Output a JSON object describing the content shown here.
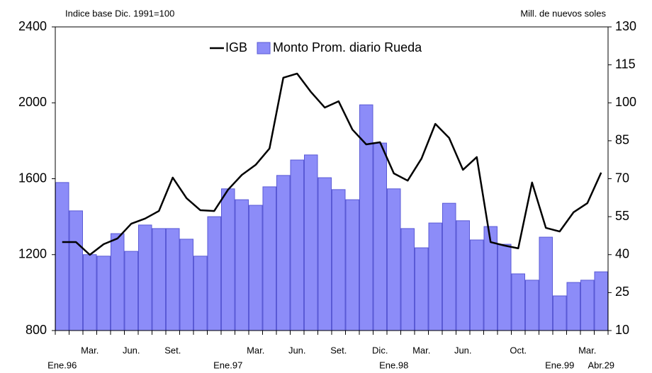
{
  "chart_data": {
    "type": "bar",
    "ylabel": "Indice base Dic. 1991=100",
    "y2label": "Mill. de nuevos soles",
    "categories": [
      "Ene.96",
      null,
      "Mar.",
      null,
      null,
      "Jun.",
      null,
      null,
      "Set.",
      null,
      null,
      null,
      "Ene.97",
      null,
      "Mar.",
      null,
      null,
      "Jun.",
      null,
      null,
      "Set.",
      null,
      null,
      "Dic.",
      "Ene.98",
      null,
      "Mar.",
      null,
      null,
      "Jun.",
      null,
      null,
      null,
      "Oct.",
      null,
      null,
      "Ene.99",
      null,
      "Mar.",
      "Abr.29"
    ],
    "series": [
      {
        "name": "IGB",
        "type": "line",
        "color": "#000000",
        "values": [
          1266,
          1266,
          1199,
          1255,
          1285,
          1363,
          1390,
          1430,
          1606,
          1497,
          1434,
          1430,
          1542,
          1620,
          1673,
          1759,
          2132,
          2154,
          2057,
          1975,
          2008,
          1859,
          1781,
          1792,
          1628,
          1590,
          1706,
          1889,
          1815,
          1647,
          1714,
          1266,
          1248,
          1233,
          1580,
          1341,
          1322,
          1423,
          1471,
          1632
        ]
      },
      {
        "name": "Monto Prom. diario Rueda",
        "type": "bar",
        "axis": "y2",
        "color": "#8c8cf8",
        "values": [
          68.5,
          57.3,
          40,
          39.4,
          48.3,
          41.3,
          51.7,
          50.3,
          50.3,
          46.1,
          39.4,
          55,
          66,
          61.7,
          59.5,
          66.8,
          71.3,
          77.4,
          79.4,
          70.4,
          65.7,
          61.7,
          99.2,
          84.1,
          66,
          50.3,
          42.7,
          52.5,
          60.3,
          53.4,
          45.8,
          51.1,
          44.1,
          32.4,
          29.9,
          46.9,
          23.7,
          29,
          29.9,
          33.2
        ]
      }
    ],
    "ylim": [
      800,
      2400
    ],
    "yticks": [
      800,
      1200,
      1600,
      2000,
      2400
    ],
    "y2lim": [
      10,
      130
    ],
    "y2ticks": [
      10,
      25,
      40,
      55,
      70,
      85,
      100,
      115,
      130
    ],
    "grid": false,
    "legend": "top"
  }
}
